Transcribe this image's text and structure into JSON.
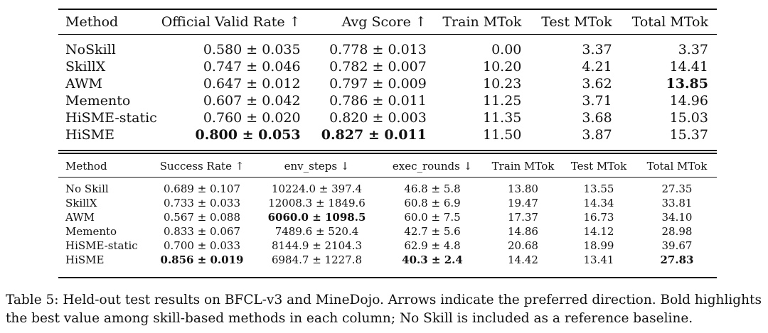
{
  "table1": {
    "headers": [
      "Method",
      "Official Valid Rate ↑",
      "Avg Score ↑",
      "Train MTok",
      "Test MTok",
      "Total MTok"
    ],
    "rows": [
      [
        "NoSkill",
        "0.580 ± 0.035",
        "0.778 ± 0.013",
        "0.00",
        "3.37",
        "3.37"
      ],
      [
        "SkillX",
        "0.747 ± 0.046",
        "0.782 ± 0.007",
        "10.20",
        "4.21",
        "14.41"
      ],
      [
        "AWM",
        "0.647 ± 0.012",
        "0.797 ± 0.009",
        "10.23",
        "3.62",
        "13.85"
      ],
      [
        "Memento",
        "0.607 ± 0.042",
        "0.786 ± 0.011",
        "11.25",
        "3.71",
        "14.96"
      ],
      [
        "HiSME-static",
        "0.760 ± 0.020",
        "0.820 ± 0.003",
        "11.35",
        "3.68",
        "15.03"
      ],
      [
        "HiSME",
        "0.800 ± 0.053",
        "0.827 ± 0.011",
        "11.50",
        "3.87",
        "15.37"
      ]
    ]
  },
  "table2": {
    "headers": [
      "Method",
      "Success Rate ↑",
      "env_steps ↓",
      "exec_rounds ↓",
      "Train MTok",
      "Test MTok",
      "Total MTok"
    ],
    "rows": [
      [
        "No Skill",
        "0.689 ± 0.107",
        "10224.0 ± 397.4",
        "46.8 ± 5.8",
        "13.80",
        "13.55",
        "27.35"
      ],
      [
        "SkillX",
        "0.733 ± 0.033",
        "12008.3 ± 1849.6",
        "60.8 ± 6.9",
        "19.47",
        "14.34",
        "33.81"
      ],
      [
        "AWM",
        "0.567 ± 0.088",
        "6060.0 ± 1098.5",
        "60.0 ± 7.5",
        "17.37",
        "16.73",
        "34.10"
      ],
      [
        "Memento",
        "0.833 ± 0.067",
        "7489.6 ± 520.4",
        "42.7 ± 5.6",
        "14.86",
        "14.12",
        "28.98"
      ],
      [
        "HiSME-static",
        "0.700 ± 0.033",
        "8144.9 ± 2104.3",
        "62.9 ± 4.8",
        "20.68",
        "18.99",
        "39.67"
      ],
      [
        "HiSME",
        "0.856 ± 0.019",
        "6984.7 ± 1227.8",
        "40.3 ± 2.4",
        "14.42",
        "13.41",
        "27.83"
      ]
    ]
  },
  "caption": "Table 5: Held-out test results on BFCL-v3 and MineDojo. Arrows indicate the preferred direction. Bold highlights the best value among skill-based methods in each column; No Skill is included as a reference baseline."
}
